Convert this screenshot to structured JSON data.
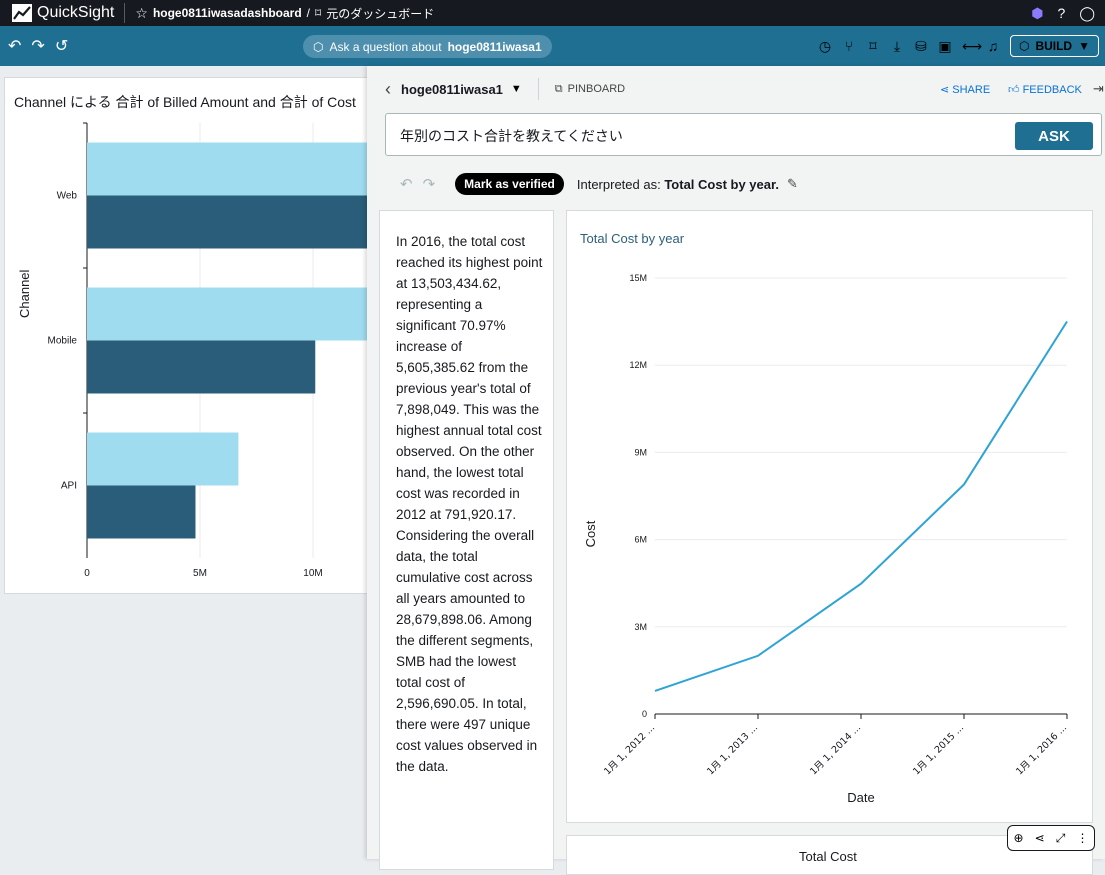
{
  "app": {
    "name": "QuickSight",
    "dashboard_name": "hoge0811iwasadashboard",
    "breadcrumb_sep": "/",
    "back_to_dashboard": "元のダッシュボード"
  },
  "toolbar": {
    "ask_prefix": "Ask a question about",
    "ask_topic": "hoge0811iwasa1",
    "build_label": "BUILD"
  },
  "dashboard_visual": {
    "title": "Channel による 合計 of Billed Amount and 合計 of Cost",
    "ylabel": "Channel",
    "chart_data": {
      "type": "bar",
      "orientation": "horizontal",
      "categories": [
        "Web",
        "Mobile",
        "API"
      ],
      "series": [
        {
          "values": [
            16.5,
            12.7,
            6.7
          ],
          "color": "#9fdcef"
        },
        {
          "values": [
            16.5,
            10.1,
            4.8
          ],
          "color": "#2a5d79"
        }
      ],
      "xticks": [
        "0",
        "5M",
        "10M"
      ],
      "xlim_visible": [
        0,
        12.6
      ],
      "unit": "M"
    }
  },
  "q_panel": {
    "topic": "hoge0811iwasa1",
    "pinboard_label": "PINBOARD",
    "share_label": "SHARE",
    "feedback_label": "FEEDBACK",
    "question": "年別のコスト合計を教えてください",
    "ask_label": "ASK",
    "verified_label": "Mark as verified",
    "interpreted_prefix": "Interpreted as:",
    "interpreted_value": "Total Cost by year.",
    "narrative": "In 2016, the total cost reached its highest point at 13,503,434.62, representing a significant 70.97% increase of 5,605,385.62 from the previous year's total of 7,898,049. This was the highest annual total cost observed. On the other hand, the lowest total cost was recorded in 2012 at 791,920.17. Considering the overall data, the total cumulative cost across all years amounted to 28,679,898.06. Among the different segments, SMB had the lowest total cost of 2,596,690.05. In total, there were 497 unique cost values observed in the data.",
    "bottom_card_title": "Total Cost"
  },
  "chart_data": {
    "type": "line",
    "title": "Total Cost by year",
    "xlabel": "Date",
    "ylabel": "Cost",
    "x": [
      "1月 1, 2012 ...",
      "1月 1, 2013 ...",
      "1月 1, 2014 ...",
      "1月 1, 2015 ...",
      "1月 1, 2016 ..."
    ],
    "series": [
      {
        "values": [
          791920.17,
          2003500,
          4483000,
          7898049,
          13503434.62
        ],
        "color": "#2ea3d6"
      }
    ],
    "yticks": [
      "0",
      "3M",
      "6M",
      "9M",
      "12M",
      "15M"
    ],
    "ylim": [
      0,
      15000000
    ],
    "grid": true
  }
}
